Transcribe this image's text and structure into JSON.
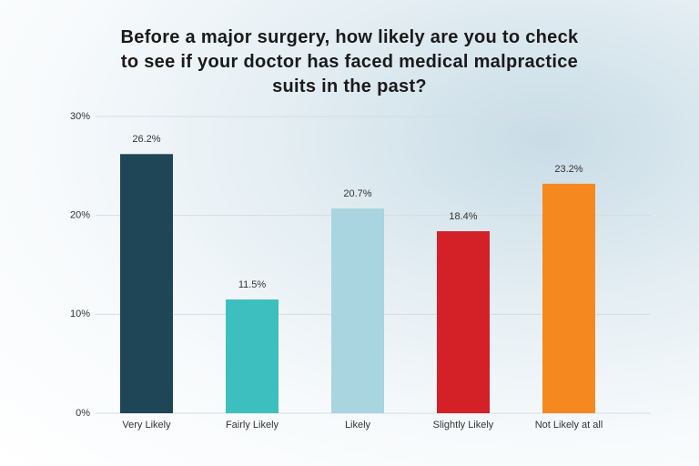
{
  "chart_data": {
    "type": "bar",
    "title": "Before a major surgery, how likely are you to check to see if your doctor has faced medical malpractice suits in the past?",
    "categories": [
      "Very Likely",
      "Fairly Likely",
      "Likely",
      "Slightly Likely",
      "Not Likely at all"
    ],
    "values": [
      26.2,
      11.5,
      20.7,
      18.4,
      23.2
    ],
    "value_labels": [
      "26.2%",
      "11.5%",
      "20.7%",
      "18.4%",
      "23.2%"
    ],
    "colors": [
      "#1f4656",
      "#3dbfc0",
      "#a8d5e0",
      "#d42027",
      "#f5891f"
    ],
    "ylim": [
      0,
      30
    ],
    "yticks": [
      {
        "value": 0,
        "label": "0%"
      },
      {
        "value": 10,
        "label": "10%"
      },
      {
        "value": 20,
        "label": "20%"
      },
      {
        "value": 30,
        "label": "30%"
      }
    ],
    "grid": true
  }
}
